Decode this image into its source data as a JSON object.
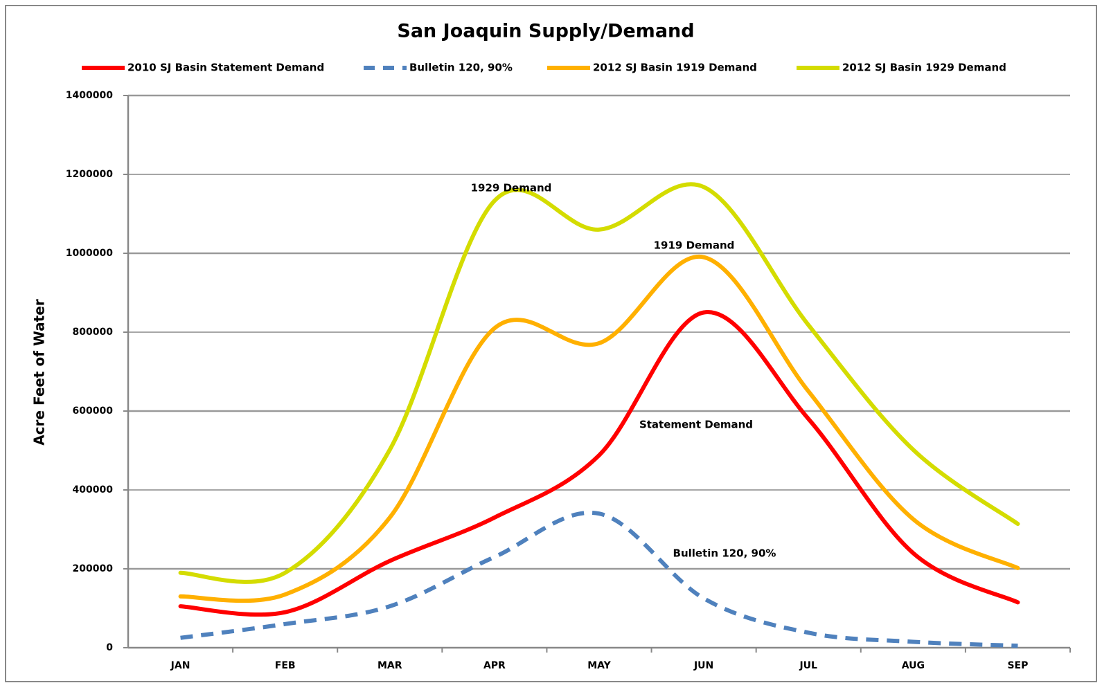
{
  "chart_data": {
    "type": "line",
    "title": "San Joaquin Supply/Demand",
    "y_label": "Acre Feet of Water",
    "categories": [
      "JAN",
      "FEB",
      "MAR",
      "APR",
      "MAY",
      "JUN",
      "JUL",
      "AUG",
      "SEP"
    ],
    "series": [
      {
        "name": "2010 SJ Basin Statement Demand",
        "color": "#ff0000",
        "dash": false,
        "values": [
          105000,
          90000,
          220000,
          330000,
          488000,
          850000,
          580000,
          240000,
          115000
        ]
      },
      {
        "name": "Bulletin 120, 90%",
        "color": "#4f81bd",
        "dash": true,
        "values": [
          25000,
          60000,
          105000,
          230000,
          340000,
          125000,
          38000,
          15000,
          5000
        ]
      },
      {
        "name": "2012 SJ Basin 1919 Demand",
        "color": "#ffb000",
        "dash": false,
        "values": [
          130000,
          135000,
          330000,
          810000,
          772000,
          990000,
          650000,
          326000,
          202000
        ]
      },
      {
        "name": "2012 SJ Basin 1929 Demand",
        "color": "#d4dc00",
        "dash": false,
        "values": [
          190000,
          190000,
          502000,
          1133000,
          1060000,
          1168000,
          818000,
          502000,
          314000
        ]
      }
    ],
    "annotations": [
      "1929 Demand",
      "1919 Demand",
      "Statement Demand",
      "Bulletin 120, 90%"
    ],
    "ylim": [
      0,
      1400000
    ],
    "yticks": [
      0,
      200000,
      400000,
      600000,
      800000,
      1000000,
      1200000,
      1400000
    ],
    "grid": true,
    "legend": "top"
  }
}
